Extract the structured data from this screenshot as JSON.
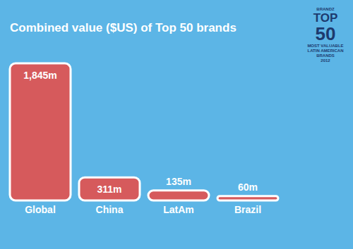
{
  "chart_data": {
    "type": "bar",
    "title": "Combined value ($US) of Top 50 brands",
    "categories": [
      "Global",
      "China",
      "LatAm",
      "Brazil"
    ],
    "values": [
      1845,
      311,
      135,
      60
    ],
    "value_labels": [
      "1,845m",
      "311m",
      "135m",
      "60m"
    ],
    "color": "#d65a5c",
    "data_labels": true,
    "tick_labels": "x",
    "grid": false,
    "annotations": [
      "BRANDZ",
      "TOP",
      "50",
      "MOST VALUABLE",
      "LATIN AMERICAN",
      "BRANDS",
      "2012"
    ]
  }
}
